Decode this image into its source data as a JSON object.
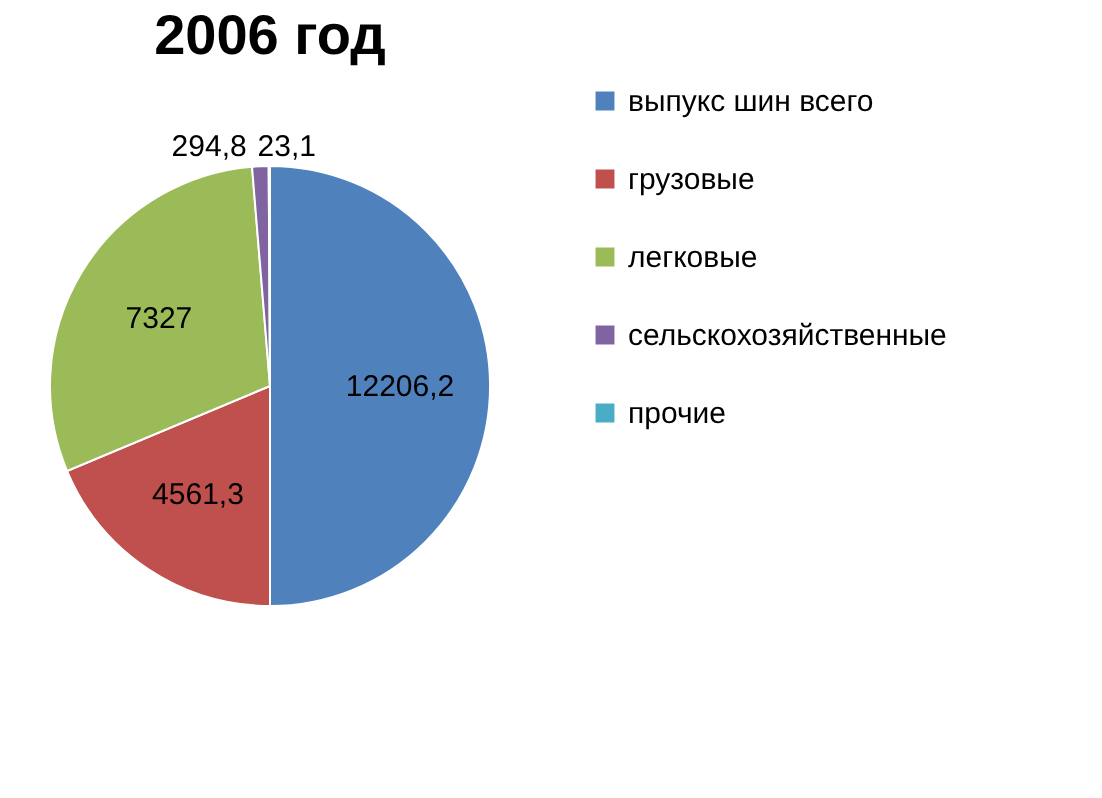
{
  "chart_data": {
    "type": "pie",
    "title": "2006 год",
    "categories": [
      "выпукс шин всего",
      "грузовые",
      "легковые",
      "сельскохозяйственные",
      "прочие"
    ],
    "values": [
      12206.2,
      4561.3,
      7327,
      294.8,
      23.1
    ],
    "value_labels": [
      "12206,2",
      "4561,3",
      "7327",
      "294,8",
      "23,1"
    ],
    "colors": [
      "#4f81bd",
      "#c0504d",
      "#9bbb59",
      "#8064a2",
      "#4bacc6"
    ],
    "legend": "right"
  }
}
